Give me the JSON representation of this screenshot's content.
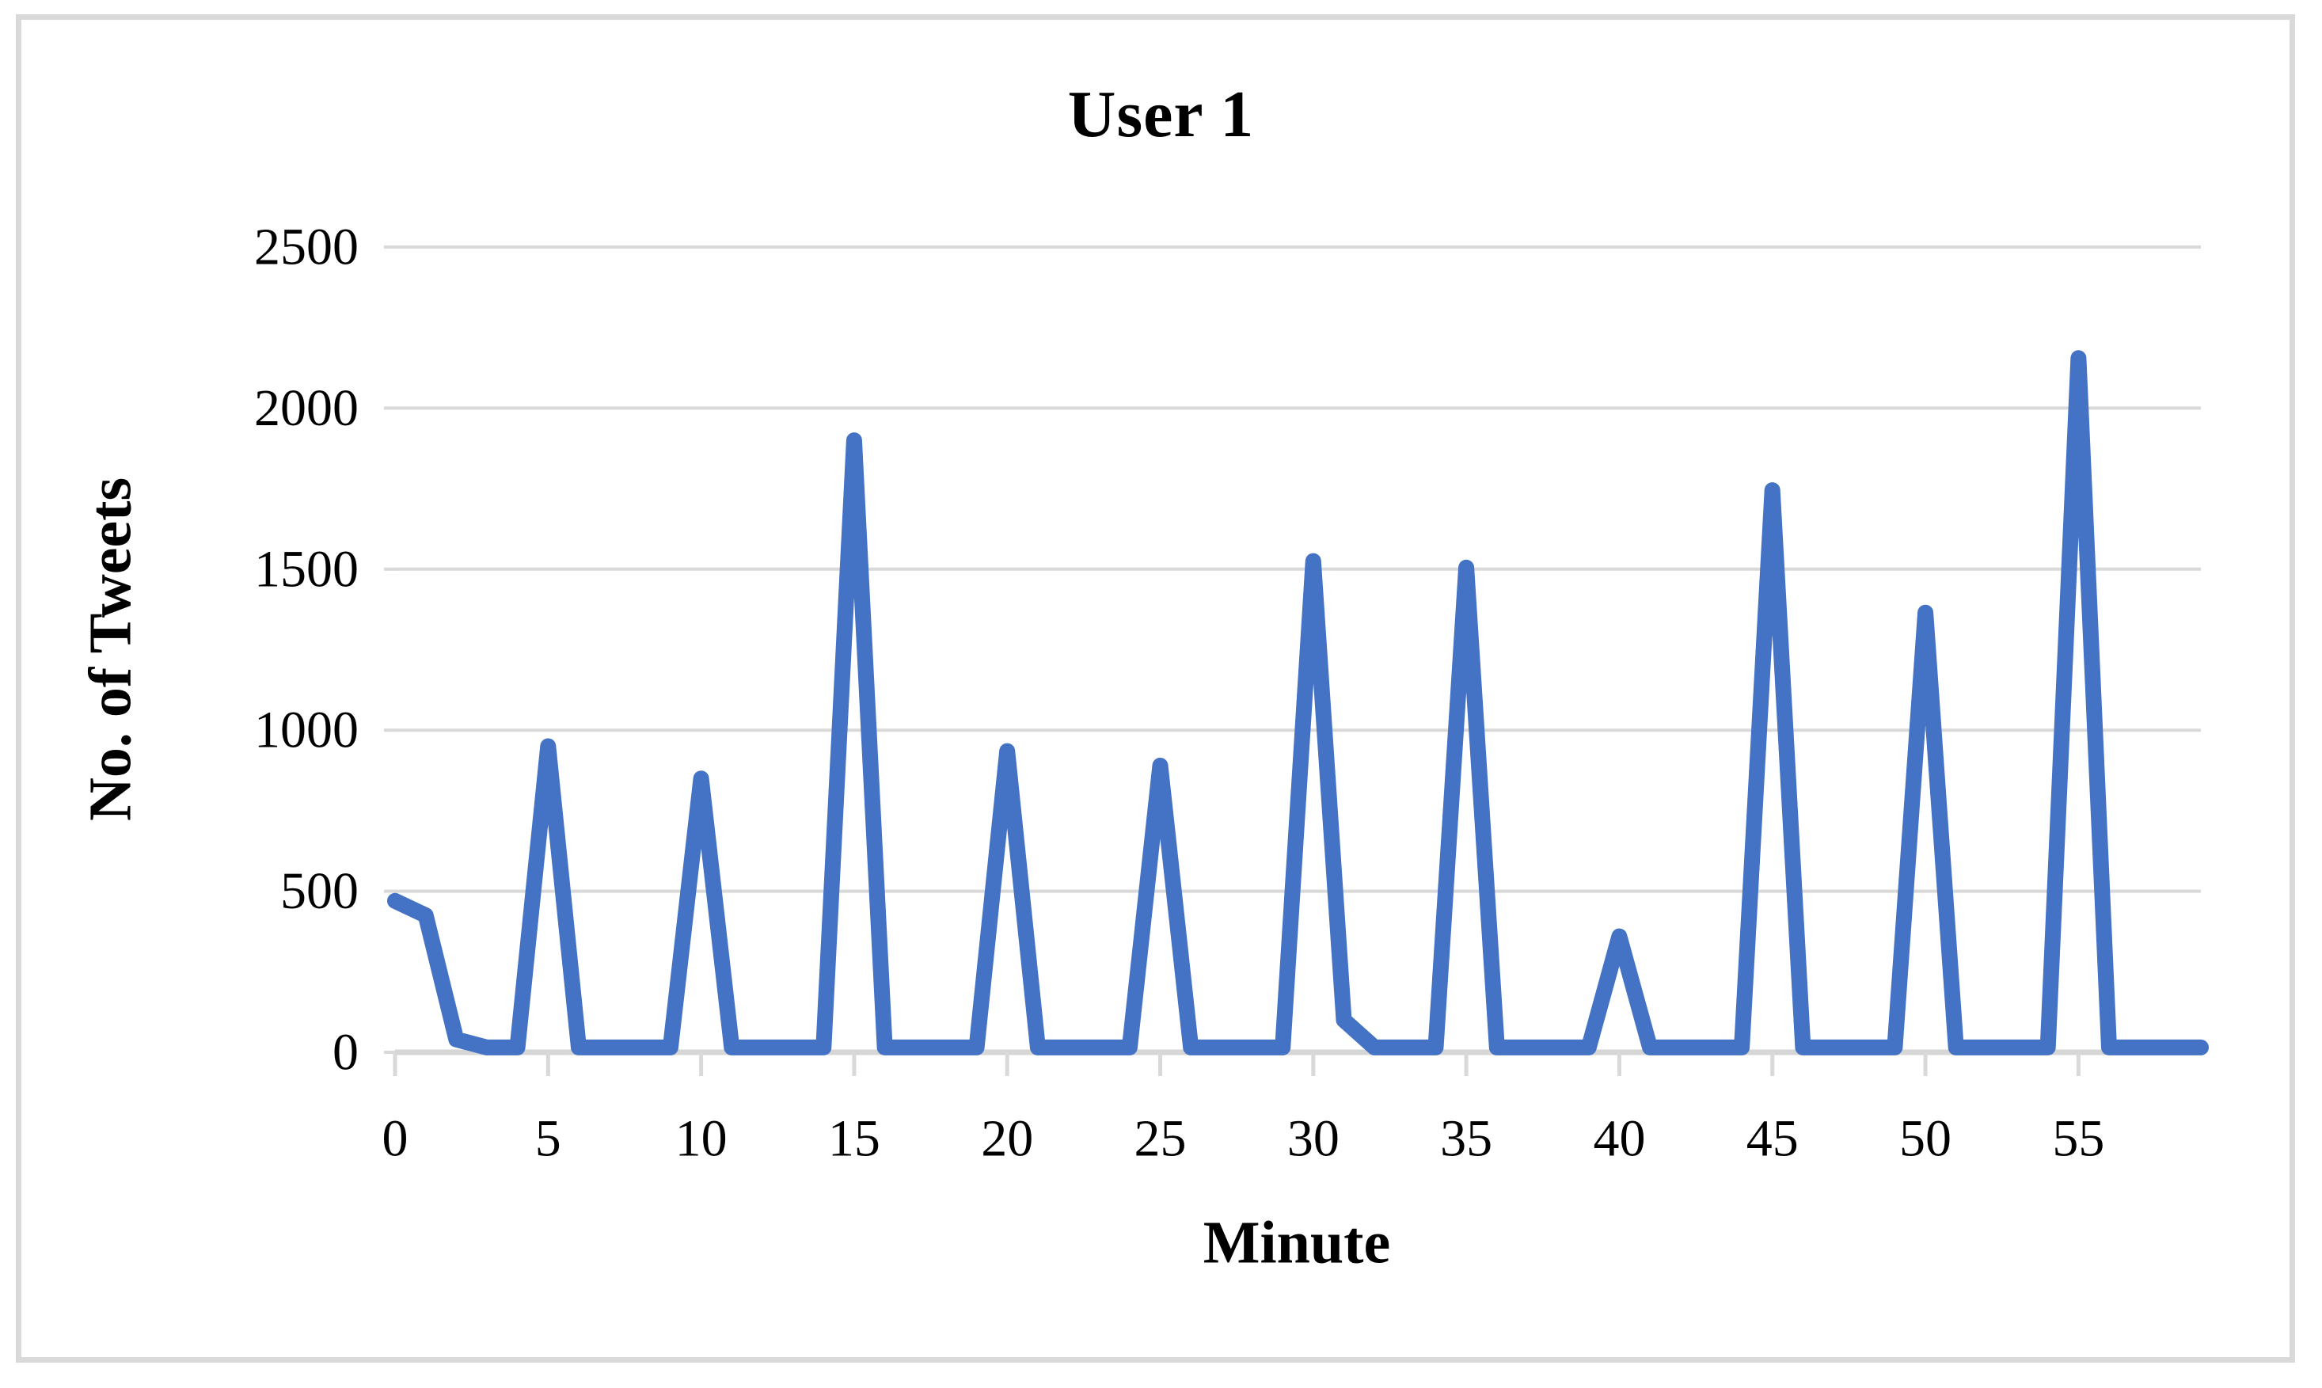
{
  "figure": {
    "background": "#ffffff",
    "border_color": "#d9d9d9"
  },
  "chart_data": {
    "type": "line",
    "title": "User 1",
    "xlabel": "Minute",
    "ylabel": "No. of Tweets",
    "x": [
      0,
      1,
      2,
      3,
      4,
      5,
      6,
      7,
      8,
      9,
      10,
      11,
      12,
      13,
      14,
      15,
      16,
      17,
      18,
      19,
      20,
      21,
      22,
      23,
      24,
      25,
      26,
      27,
      28,
      29,
      30,
      31,
      32,
      33,
      34,
      35,
      36,
      37,
      38,
      39,
      40,
      41,
      42,
      43,
      44,
      45,
      46,
      47,
      48,
      49,
      50,
      51,
      52,
      53,
      54,
      55,
      56,
      57,
      58,
      59
    ],
    "values": [
      470,
      425,
      40,
      15,
      15,
      950,
      15,
      15,
      15,
      15,
      850,
      15,
      15,
      15,
      15,
      1900,
      15,
      15,
      15,
      15,
      935,
      15,
      15,
      15,
      15,
      890,
      15,
      15,
      15,
      15,
      1525,
      100,
      15,
      15,
      15,
      1505,
      15,
      15,
      15,
      15,
      360,
      15,
      15,
      15,
      15,
      1745,
      15,
      15,
      15,
      15,
      1365,
      15,
      15,
      15,
      15,
      2155,
      15,
      15,
      15,
      15
    ],
    "xlim": [
      0,
      59
    ],
    "ylim": [
      0,
      2500
    ],
    "x_ticks": [
      0,
      5,
      10,
      15,
      20,
      25,
      30,
      35,
      40,
      45,
      50,
      55
    ],
    "y_ticks": [
      0,
      500,
      1000,
      1500,
      2000,
      2500
    ],
    "grid": "horizontal",
    "legend": "none",
    "line_color": "#4472C4",
    "gridline_color": "#d9d9d9",
    "axis_color": "#d6d6d6"
  }
}
